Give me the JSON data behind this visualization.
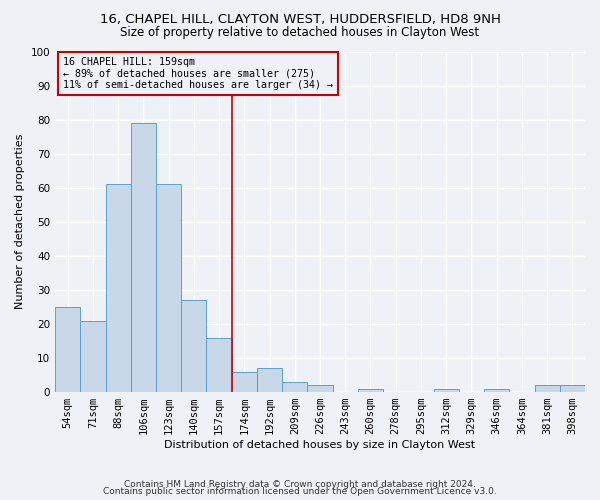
{
  "title1": "16, CHAPEL HILL, CLAYTON WEST, HUDDERSFIELD, HD8 9NH",
  "title2": "Size of property relative to detached houses in Clayton West",
  "xlabel": "Distribution of detached houses by size in Clayton West",
  "ylabel": "Number of detached properties",
  "bar_labels": [
    "54sqm",
    "71sqm",
    "88sqm",
    "106sqm",
    "123sqm",
    "140sqm",
    "157sqm",
    "174sqm",
    "192sqm",
    "209sqm",
    "226sqm",
    "243sqm",
    "260sqm",
    "278sqm",
    "295sqm",
    "312sqm",
    "329sqm",
    "346sqm",
    "364sqm",
    "381sqm",
    "398sqm"
  ],
  "bar_values": [
    25,
    21,
    61,
    79,
    61,
    27,
    16,
    6,
    7,
    3,
    2,
    0,
    1,
    0,
    0,
    1,
    0,
    1,
    0,
    2,
    2
  ],
  "bar_color": "#c8d8e8",
  "bar_edge_color": "#5a9fd4",
  "property_line_x": 6.5,
  "property_line_color": "#cc0000",
  "annotation_box_text": "16 CHAPEL HILL: 159sqm\n← 89% of detached houses are smaller (275)\n11% of semi-detached houses are larger (34) →",
  "annotation_box_color": "#cc0000",
  "ylim": [
    0,
    100
  ],
  "yticks": [
    0,
    10,
    20,
    30,
    40,
    50,
    60,
    70,
    80,
    90,
    100
  ],
  "footnote1": "Contains HM Land Registry data © Crown copyright and database right 2024.",
  "footnote2": "Contains public sector information licensed under the Open Government Licence v3.0.",
  "bg_color": "#eef2f7",
  "grid_color": "#ffffff",
  "title_fontsize": 9.5,
  "subtitle_fontsize": 8.5,
  "axis_label_fontsize": 8,
  "tick_fontsize": 7.5,
  "footnote_fontsize": 6.5
}
